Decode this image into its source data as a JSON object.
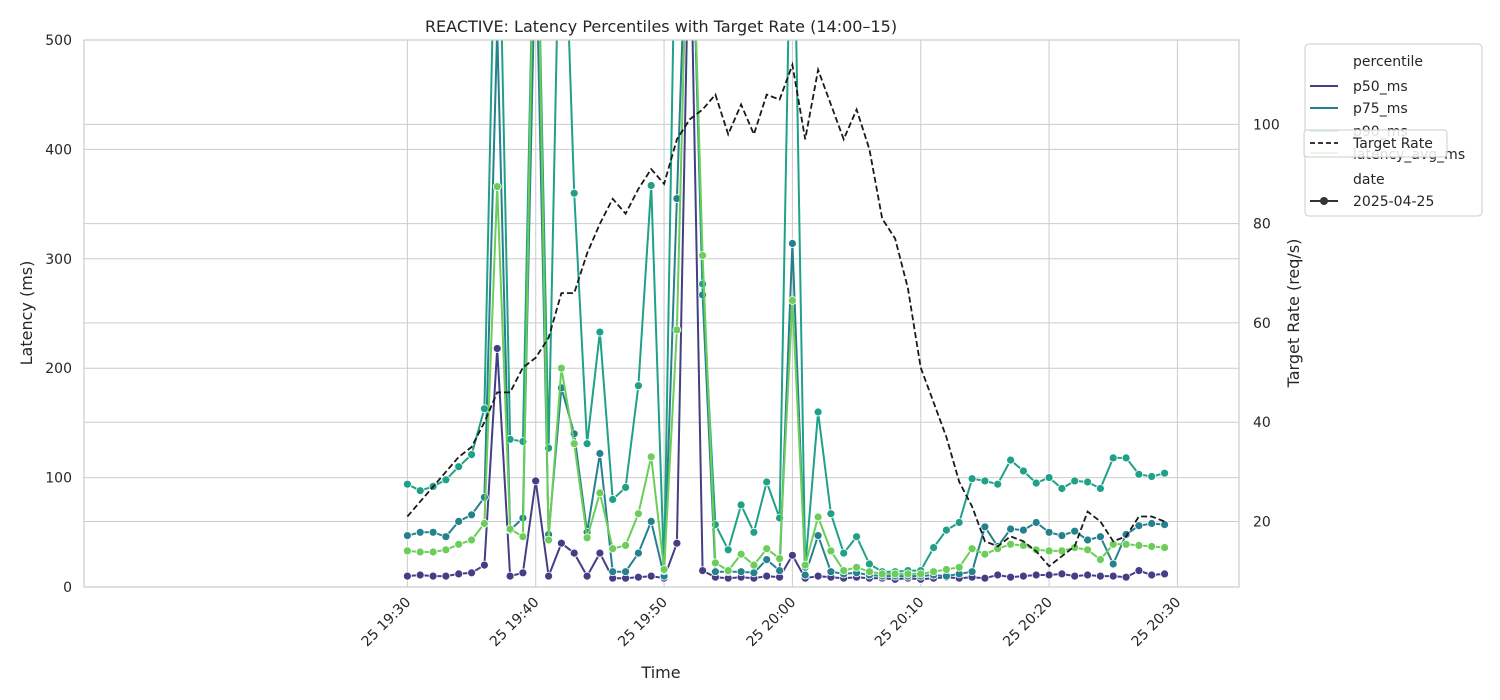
{
  "chart_data": {
    "type": "line",
    "title": "REACTIVE: Latency Percentiles with Target Rate (14:00–15)",
    "xlabel": "Time",
    "ylabel": "Latency (ms)",
    "y2label": "Target Rate (req/s)",
    "ylim": [
      0,
      500
    ],
    "y2lim": [
      6.8,
      117
    ],
    "yticks": [
      "0",
      "100",
      "200",
      "300",
      "400",
      "500"
    ],
    "y2ticks": [
      "20",
      "40",
      "60",
      "80",
      "100"
    ],
    "xlim_minutes": [
      19.08,
      20.58
    ],
    "xticks": [
      {
        "label": "25 19:30",
        "minute": 0
      },
      {
        "label": "25 19:40",
        "minute": 10
      },
      {
        "label": "25 19:50",
        "minute": 20
      },
      {
        "label": "25 20:00",
        "minute": 30
      },
      {
        "label": "25 20:10",
        "minute": 40
      },
      {
        "label": "25 20:20",
        "minute": 50
      },
      {
        "label": "25 20:30",
        "minute": 60
      }
    ],
    "grid": true,
    "legend_position": "outside-top-right",
    "x_minutes": [
      0,
      1,
      2,
      3,
      4,
      5,
      6,
      7,
      8,
      9,
      10,
      11,
      12,
      13,
      14,
      15,
      16,
      17,
      18,
      19,
      20,
      21,
      22,
      23,
      24,
      25,
      26,
      27,
      28,
      29,
      30,
      31,
      32,
      33,
      34,
      35,
      36,
      37,
      38,
      39,
      40,
      41,
      42,
      43,
      44,
      45,
      46,
      47,
      48,
      49,
      50,
      51,
      52,
      53,
      54,
      55,
      56,
      57,
      58,
      59
    ],
    "series": [
      {
        "name": "p50_ms",
        "color": "#433e85",
        "values": [
          10,
          11,
          10,
          10,
          12,
          13,
          20,
          218,
          10,
          13,
          97,
          10,
          40,
          31,
          10,
          31,
          8,
          8,
          9,
          10,
          8,
          40,
          640,
          15,
          9,
          8,
          9,
          8,
          10,
          9,
          29,
          8,
          10,
          9,
          8,
          9,
          8,
          8,
          7,
          8,
          7,
          8,
          9,
          8,
          9,
          8,
          11,
          9,
          10,
          11,
          11,
          12,
          10,
          11,
          10,
          10,
          9,
          15,
          11,
          12
        ]
      },
      {
        "name": "p75_ms",
        "color": "#26818e",
        "values": [
          47,
          50,
          50,
          46,
          60,
          66,
          82,
          510,
          52,
          63,
          600,
          48,
          182,
          140,
          50,
          122,
          14,
          14,
          31,
          60,
          10,
          355,
          700,
          267,
          14,
          14,
          14,
          13,
          25,
          15,
          314,
          11,
          47,
          14,
          12,
          13,
          11,
          10,
          10,
          10,
          10,
          11,
          10,
          12,
          14,
          55,
          37,
          53,
          52,
          59,
          50,
          47,
          51,
          43,
          46,
          21,
          48,
          56,
          58,
          57
        ]
      },
      {
        "name": "p90_ms",
        "color": "#1fa187",
        "values": [
          94,
          88,
          92,
          98,
          110,
          121,
          163,
          710,
          135,
          133,
          700,
          127,
          710,
          360,
          131,
          233,
          80,
          91,
          184,
          367,
          15,
          700,
          700,
          277,
          57,
          34,
          75,
          50,
          96,
          63,
          710,
          18,
          160,
          67,
          31,
          46,
          21,
          14,
          14,
          15,
          15,
          36,
          52,
          59,
          99,
          97,
          94,
          116,
          106,
          95,
          100,
          90,
          97,
          96,
          90,
          118,
          118,
          103,
          101,
          104
        ]
      },
      {
        "name": "latency_avg_ms",
        "color": "#6ccd5a",
        "values": [
          33,
          32,
          32,
          34,
          39,
          43,
          58,
          366,
          53,
          46,
          710,
          43,
          200,
          131,
          45,
          86,
          35,
          38,
          67,
          119,
          16,
          235,
          700,
          303,
          22,
          15,
          30,
          20,
          35,
          26,
          262,
          20,
          64,
          33,
          15,
          18,
          14,
          12,
          12,
          12,
          12,
          14,
          16,
          18,
          35,
          30,
          35,
          39,
          38,
          34,
          33,
          33,
          36,
          34,
          25,
          39,
          39,
          38,
          37,
          36
        ]
      }
    ],
    "target_rate": {
      "name": "Target Rate",
      "color": "#1a1a1a",
      "values": [
        21,
        24,
        27,
        30,
        33,
        35,
        40,
        46,
        46,
        51,
        53,
        57,
        66,
        66,
        74,
        80,
        85,
        82,
        87,
        91,
        88,
        97,
        101,
        103,
        106,
        98,
        104,
        98,
        106,
        105,
        112,
        97,
        111,
        104,
        97,
        103,
        95,
        81,
        77,
        67,
        51,
        44,
        37,
        28,
        23,
        16,
        15,
        17,
        16,
        14,
        11,
        13,
        15,
        22,
        20,
        16,
        17,
        21,
        21,
        20
      ]
    },
    "legend": {
      "hue_title": "percentile",
      "hue_items": [
        "p50_ms",
        "p75_ms",
        "p90_ms",
        "latency_avg_ms"
      ],
      "style_title": "date",
      "style_item": "2025-04-25",
      "overlay_item": "Target Rate"
    }
  }
}
